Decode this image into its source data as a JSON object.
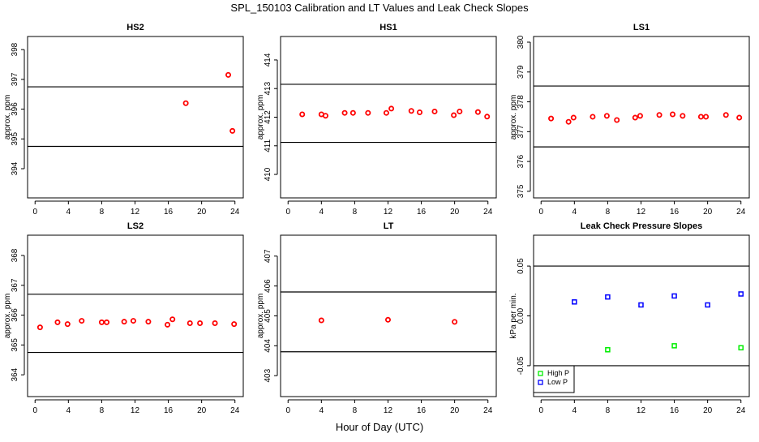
{
  "title": "SPL_150103  Calibration and LT Values and Leak Check Slopes",
  "xlabel_common": "Hour of Day (UTC)",
  "chart_data": [
    {
      "type": "scatter",
      "title": "HS2",
      "ylabel": "approx. ppm",
      "xlim": [
        -0.9,
        25
      ],
      "ylim": [
        393.02,
        398.44
      ],
      "xticks": [
        0,
        4,
        8,
        12,
        16,
        20,
        24
      ],
      "yticks": [
        394,
        395,
        396,
        397,
        398
      ],
      "hlines": [
        396.75,
        394.75
      ],
      "series": [
        {
          "color": "#ff0000",
          "marker": "circle",
          "x": [
            18.1,
            23.2,
            23.7
          ],
          "y": [
            396.2,
            397.15,
            395.27
          ]
        }
      ]
    },
    {
      "type": "scatter",
      "title": "HS1",
      "ylabel": "approx. ppm",
      "xlim": [
        -0.9,
        25
      ],
      "ylim": [
        409.18,
        414.82
      ],
      "xticks": [
        0,
        4,
        8,
        12,
        16,
        20,
        24
      ],
      "yticks": [
        410,
        411,
        412,
        413,
        414
      ],
      "hlines": [
        413.15,
        411.12
      ],
      "series": [
        {
          "color": "#ff0000",
          "marker": "circle",
          "x": [
            1.7,
            4.0,
            4.5,
            6.8,
            7.8,
            9.6,
            11.8,
            12.4,
            14.8,
            15.8,
            17.6,
            19.9,
            20.6,
            22.8,
            23.9
          ],
          "y": [
            412.1,
            412.1,
            412.05,
            412.15,
            412.15,
            412.15,
            412.15,
            412.3,
            412.22,
            412.17,
            412.2,
            412.07,
            412.2,
            412.18,
            412.02
          ]
        }
      ]
    },
    {
      "type": "scatter",
      "title": "LS1",
      "ylabel": "approx. ppm",
      "xlim": [
        -0.9,
        25
      ],
      "ylim": [
        374.78,
        380.19
      ],
      "xticks": [
        0,
        4,
        8,
        12,
        16,
        20,
        24
      ],
      "yticks": [
        375,
        376,
        377,
        378,
        379,
        380
      ],
      "hlines": [
        378.53,
        376.49
      ],
      "series": [
        {
          "color": "#ff0000",
          "marker": "circle",
          "x": [
            1.2,
            3.3,
            3.9,
            6.2,
            7.9,
            9.1,
            11.3,
            11.9,
            14.2,
            15.8,
            17.0,
            19.2,
            19.8,
            22.2,
            23.8
          ],
          "y": [
            377.44,
            377.33,
            377.47,
            377.5,
            377.53,
            377.39,
            377.47,
            377.53,
            377.56,
            377.58,
            377.53,
            377.5,
            377.5,
            377.56,
            377.47
          ]
        }
      ]
    },
    {
      "type": "scatter",
      "title": "LS2",
      "ylabel": "approx. ppm",
      "xlim": [
        -0.9,
        25
      ],
      "ylim": [
        363.27,
        368.68
      ],
      "xticks": [
        0,
        4,
        8,
        12,
        16,
        20,
        24
      ],
      "yticks": [
        364,
        365,
        366,
        367,
        368
      ],
      "hlines": [
        366.7,
        364.75
      ],
      "series": [
        {
          "color": "#ff0000",
          "marker": "circle",
          "x": [
            0.6,
            2.7,
            3.9,
            5.6,
            8.0,
            8.6,
            10.7,
            11.8,
            13.6,
            15.9,
            16.5,
            18.6,
            19.8,
            21.6,
            23.9
          ],
          "y": [
            365.59,
            365.76,
            365.7,
            365.81,
            365.76,
            365.76,
            365.78,
            365.81,
            365.78,
            365.68,
            365.86,
            365.73,
            365.73,
            365.73,
            365.7
          ]
        }
      ]
    },
    {
      "type": "scatter",
      "title": "LT",
      "ylabel": "approx. ppm",
      "xlim": [
        -0.9,
        25
      ],
      "ylim": [
        402.3,
        407.7
      ],
      "xticks": [
        0,
        4,
        8,
        12,
        16,
        20,
        24
      ],
      "yticks": [
        403,
        404,
        405,
        406,
        407
      ],
      "hlines": [
        405.8,
        403.8
      ],
      "series": [
        {
          "color": "#ff0000",
          "marker": "circle",
          "x": [
            4.0,
            12.0,
            20.0
          ],
          "y": [
            404.85,
            404.87,
            404.8
          ]
        }
      ]
    },
    {
      "type": "scatter",
      "title": "Leak Check Pressure Slopes",
      "ylabel": "kPa per min.",
      "xlim": [
        -0.9,
        25
      ],
      "ylim": [
        -0.081,
        0.081
      ],
      "xticks": [
        0,
        4,
        8,
        12,
        16,
        20,
        24
      ],
      "yticks": [
        -0.05,
        0.0,
        0.05
      ],
      "ytick_labels": [
        "-0.05",
        "0.00",
        "0.05"
      ],
      "hlines": [
        0.05,
        -0.05
      ],
      "legend": "bottom-left",
      "series": [
        {
          "name": "High P",
          "color": "#00ee00",
          "marker": "square",
          "x": [
            8,
            16,
            24
          ],
          "y": [
            -0.034,
            -0.03,
            -0.032
          ]
        },
        {
          "name": "Low P",
          "color": "#0000ff",
          "marker": "square",
          "x": [
            4,
            8,
            12,
            16,
            20,
            24
          ],
          "y": [
            0.014,
            0.019,
            0.011,
            0.02,
            0.011,
            0.022
          ]
        }
      ]
    }
  ]
}
